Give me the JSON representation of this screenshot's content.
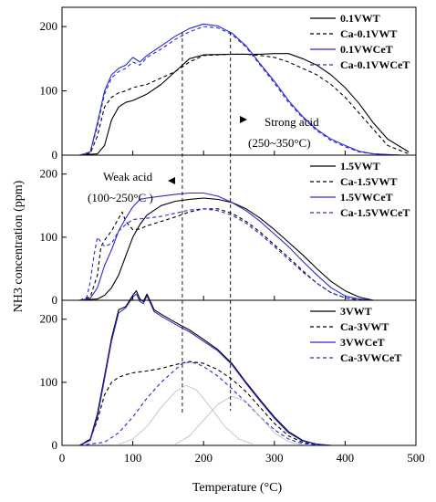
{
  "chart_data": {
    "type": "line",
    "xlabel": "Temperature (°C)",
    "ylabel": "NH3 concentration (ppm)",
    "xlim": [
      0,
      500
    ],
    "ylim": [
      0,
      230
    ],
    "x_ticks": [
      0,
      100,
      200,
      300,
      400,
      500
    ],
    "y_ticks": [
      0,
      100,
      200
    ],
    "grid": false,
    "legend_position": "top-right",
    "colors": {
      "black": "#000000",
      "blue": "#2a2ad0",
      "gray": "#bdbdbd"
    },
    "vlines": [
      170,
      238
    ],
    "annotations": {
      "strong_acid": "Strong acid",
      "strong_range": "(250~350°C)",
      "weak_acid": "Weak acid",
      "weak_range": "(100~250°C )"
    },
    "panels": [
      {
        "series": [
          {
            "name": "0.1VWT",
            "color": "#000000",
            "dash": "solid",
            "x": [
              25,
              50,
              60,
              70,
              80,
              90,
              100,
              120,
              140,
              160,
              180,
              200,
              240,
              260,
              280,
              300,
              320,
              340,
              360,
              380,
              400,
              420,
              440,
              460,
              490
            ],
            "y": [
              0,
              2,
              15,
              55,
              75,
              82,
              85,
              95,
              110,
              130,
              150,
              156,
              157,
              157,
              157,
              158,
              158,
              150,
              140,
              125,
              105,
              80,
              50,
              25,
              5
            ]
          },
          {
            "name": "Ca-0.1VWT",
            "color": "#000000",
            "dash": "dashed",
            "x": [
              25,
              40,
              50,
              60,
              70,
              80,
              90,
              100,
              120,
              140,
              160,
              180,
              200,
              240,
              260,
              280,
              300,
              320,
              340,
              360,
              380,
              400,
              420,
              440,
              460,
              490
            ],
            "y": [
              0,
              3,
              30,
              75,
              90,
              97,
              100,
              105,
              110,
              120,
              130,
              145,
              155,
              157,
              157,
              155,
              152,
              145,
              135,
              125,
              110,
              90,
              65,
              40,
              15,
              2
            ]
          },
          {
            "name": "0.1VWCeT",
            "color": "#2a2ad0",
            "dash": "solid",
            "x": [
              25,
              40,
              50,
              60,
              70,
              80,
              90,
              100,
              110,
              120,
              140,
              160,
              180,
              200,
              220,
              240,
              260,
              280,
              300,
              320,
              340,
              360,
              380,
              400,
              420,
              440,
              460,
              480
            ],
            "y": [
              0,
              5,
              50,
              100,
              125,
              135,
              140,
              152,
              145,
              155,
              170,
              185,
              197,
              204,
              201,
              190,
              170,
              142,
              115,
              85,
              60,
              40,
              25,
              15,
              6,
              2,
              1,
              0
            ]
          },
          {
            "name": "Ca-0.1VWCeT",
            "color": "#2a2ad0",
            "dash": "dashed",
            "x": [
              25,
              40,
              50,
              60,
              70,
              80,
              90,
              100,
              110,
              120,
              140,
              160,
              180,
              200,
              220,
              240,
              260,
              280,
              300,
              320,
              340,
              360,
              380,
              400,
              420,
              440,
              460,
              480
            ],
            "y": [
              0,
              5,
              45,
              95,
              120,
              130,
              135,
              145,
              140,
              152,
              165,
              180,
              192,
              200,
              198,
              188,
              168,
              140,
              112,
              82,
              58,
              38,
              23,
              13,
              5,
              2,
              1,
              0
            ]
          }
        ]
      },
      {
        "series": [
          {
            "name": "1.5VWT",
            "color": "#000000",
            "dash": "solid",
            "x": [
              25,
              50,
              60,
              70,
              80,
              90,
              100,
              110,
              120,
              140,
              160,
              180,
              200,
              220,
              240,
              260,
              280,
              300,
              320,
              340,
              360,
              380,
              400,
              420,
              440
            ],
            "y": [
              0,
              2,
              8,
              20,
              40,
              70,
              100,
              120,
              135,
              150,
              157,
              160,
              162,
              160,
              155,
              145,
              130,
              112,
              92,
              72,
              50,
              30,
              15,
              5,
              0
            ]
          },
          {
            "name": "Ca-1.5VWT",
            "color": "#000000",
            "dash": "dashed",
            "x": [
              25,
              40,
              50,
              55,
              60,
              70,
              80,
              85,
              90,
              100,
              110,
              120,
              140,
              160,
              180,
              200,
              220,
              240,
              260,
              280,
              300,
              320,
              340,
              360,
              380,
              400,
              420
            ],
            "y": [
              0,
              5,
              40,
              85,
              95,
              110,
              130,
              140,
              125,
              112,
              113,
              118,
              125,
              132,
              140,
              145,
              145,
              138,
              125,
              108,
              88,
              68,
              47,
              27,
              12,
              4,
              0
            ]
          },
          {
            "name": "1.5VWCeT",
            "color": "#2a2ad0",
            "dash": "solid",
            "x": [
              25,
              40,
              50,
              60,
              70,
              80,
              90,
              100,
              110,
              120,
              140,
              160,
              180,
              200,
              220,
              240,
              260,
              280,
              300,
              320,
              340,
              360,
              380,
              400,
              420,
              440
            ],
            "y": [
              0,
              3,
              20,
              55,
              80,
              110,
              130,
              148,
              160,
              162,
              165,
              168,
              170,
              170,
              165,
              155,
              142,
              125,
              105,
              85,
              62,
              40,
              20,
              7,
              2,
              0
            ]
          },
          {
            "name": "Ca-1.5VWCeT",
            "color": "#2a2ad0",
            "dash": "dashed",
            "x": [
              25,
              35,
              40,
              45,
              50,
              60,
              70,
              80,
              90,
              100,
              120,
              140,
              160,
              180,
              200,
              220,
              240,
              260,
              280,
              300,
              320,
              340,
              360,
              380,
              400,
              420,
              440
            ],
            "y": [
              0,
              5,
              30,
              70,
              100,
              85,
              90,
              110,
              120,
              128,
              130,
              133,
              138,
              143,
              145,
              142,
              135,
              122,
              105,
              85,
              65,
              45,
              27,
              12,
              4,
              1,
              0
            ]
          }
        ]
      },
      {
        "series": [
          {
            "name": "3VWT",
            "color": "#000000",
            "dash": "solid",
            "x": [
              25,
              40,
              50,
              60,
              70,
              80,
              90,
              100,
              105,
              110,
              115,
              120,
              125,
              130,
              140,
              160,
              180,
              200,
              220,
              240,
              260,
              280,
              300,
              320,
              340,
              360,
              380,
              400
            ],
            "y": [
              0,
              10,
              50,
              110,
              170,
              215,
              220,
              238,
              245,
              232,
              228,
              240,
              228,
              215,
              208,
              195,
              183,
              168,
              152,
              130,
              100,
              72,
              45,
              22,
              8,
              2,
              0,
              0
            ]
          },
          {
            "name": "Ca-3VWT",
            "color": "#000000",
            "dash": "dashed",
            "x": [
              25,
              40,
              50,
              60,
              70,
              80,
              90,
              100,
              120,
              140,
              160,
              180,
              200,
              220,
              240,
              260,
              280,
              300,
              320,
              340,
              360,
              380
            ],
            "y": [
              0,
              10,
              40,
              80,
              100,
              108,
              112,
              115,
              118,
              122,
              128,
              133,
              130,
              120,
              105,
              85,
              60,
              35,
              15,
              5,
              1,
              0
            ]
          },
          {
            "name": "3VWCeT",
            "color": "#2a2ad0",
            "dash": "solid",
            "x": [
              25,
              40,
              50,
              60,
              70,
              80,
              90,
              100,
              105,
              110,
              115,
              120,
              125,
              130,
              140,
              160,
              180,
              200,
              220,
              240,
              260,
              280,
              300,
              320,
              340,
              360,
              380,
              400
            ],
            "y": [
              0,
              8,
              45,
              105,
              165,
              210,
              218,
              235,
              240,
              228,
              225,
              237,
              225,
              212,
              205,
              192,
              180,
              165,
              150,
              128,
              98,
              70,
              43,
              20,
              7,
              2,
              0,
              0
            ]
          },
          {
            "name": "Ca-3VWCeT",
            "color": "#2a2ad0",
            "dash": "dashed",
            "x": [
              25,
              60,
              80,
              100,
              120,
              140,
              160,
              170,
              180,
              190,
              200,
              220,
              240,
              260,
              280,
              300,
              320,
              340,
              360,
              380,
              400
            ],
            "y": [
              0,
              5,
              20,
              45,
              75,
              100,
              120,
              130,
              132,
              130,
              125,
              110,
              90,
              68,
              45,
              25,
              10,
              3,
              1,
              0,
              0
            ]
          },
          {
            "name": "",
            "color": "#bdbdbd",
            "dash": "solid",
            "x": [
              80,
              100,
              120,
              140,
              160,
              175,
              190,
              210,
              230,
              250,
              270
            ],
            "y": [
              2,
              10,
              30,
              60,
              85,
              95,
              88,
              60,
              30,
              10,
              2
            ]
          },
          {
            "name": "",
            "color": "#bdbdbd",
            "dash": "solid",
            "x": [
              160,
              180,
              200,
              220,
              240,
              260,
              280,
              300,
              320,
              340
            ],
            "y": [
              2,
              15,
              40,
              65,
              78,
              70,
              45,
              20,
              6,
              1
            ]
          }
        ]
      }
    ]
  }
}
